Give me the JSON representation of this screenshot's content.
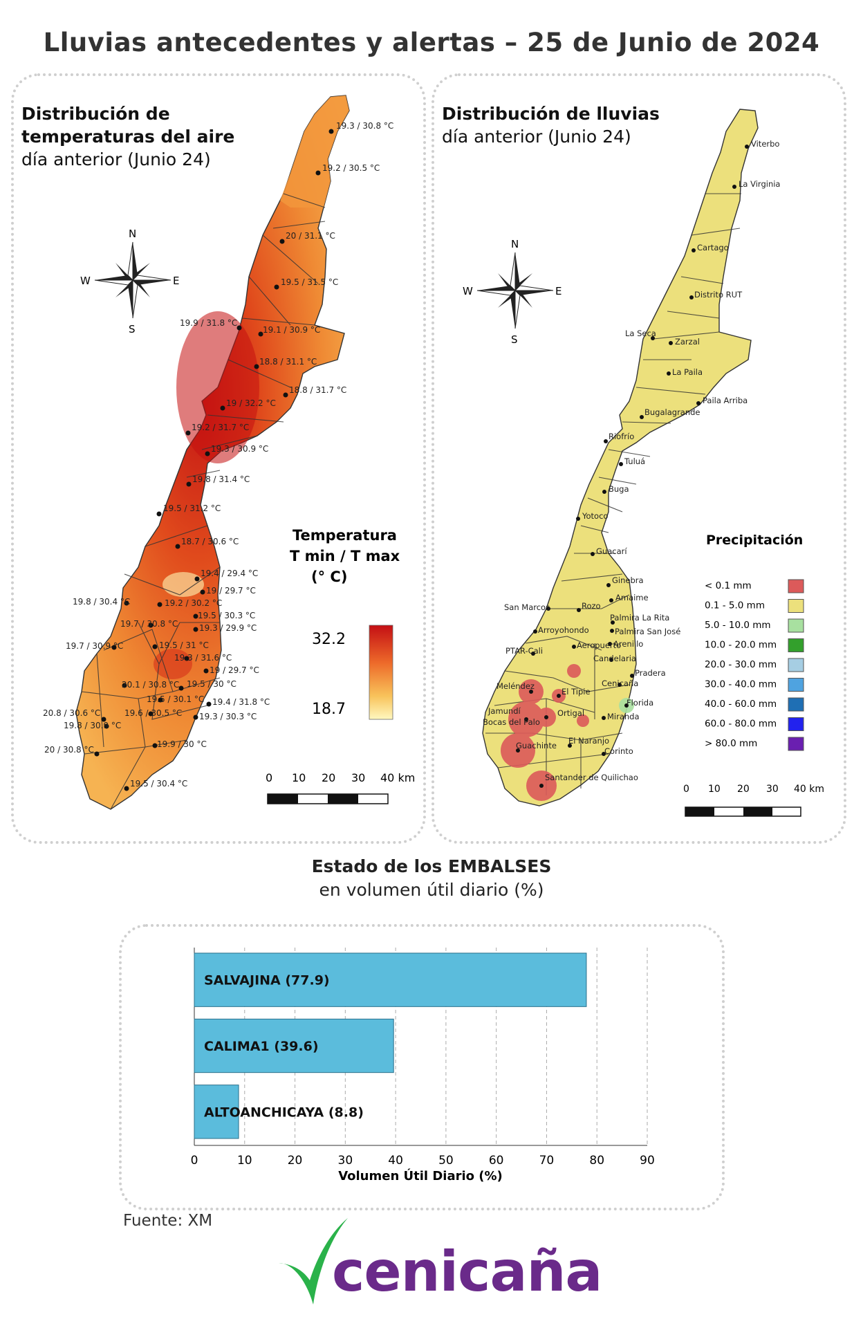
{
  "title": "Lluvias antecedentes y alertas – 25 de Junio de 2024",
  "temp_panel": {
    "title_line1": "Distribución de",
    "title_line2": "temperaturas del aire",
    "subtitle": "día anterior (Junio 24)",
    "legend_title_1": "Temperatura",
    "legend_title_2": "T min / T max",
    "legend_title_3": "(° C)",
    "legend_max": "32.2",
    "legend_min": "18.7",
    "scale_labels": [
      "0",
      "10",
      "20",
      "30",
      "40 km"
    ],
    "compass": {
      "n": "N",
      "s": "S",
      "e": "E",
      "w": "W"
    },
    "stations": [
      "19.3 / 30.8 °C",
      "19.2 / 30.5 °C",
      "20 / 31.1 °C",
      "19.5 / 31.5 °C",
      "19.9 / 31.8 °C",
      "19.1 / 30.9 °C",
      "18.8 / 31.1 °C",
      "18.8 / 31.7 °C",
      "19 / 32.2 °C",
      "19.2 / 31.7 °C",
      "19.3 / 30.9 °C",
      "19.8 / 31.4 °C",
      "19.5 / 31.2 °C",
      "18.7 / 30.6 °C",
      "19.4 / 29.4 °C",
      "19 / 29.7 °C",
      "19.8 / 30.4 °C",
      "19.2 / 30.2 °C",
      "19.5 / 30.3 °C",
      "19.7 / 30.8 °C",
      "19.3 / 29.9 °C",
      "19.7 / 30.9 °C",
      "19.5 / 31 °C",
      "19.3 / 31.6 °C",
      "19 / 29.7 °C",
      "20.1 / 30.8 °C",
      "19.5 / 30 °C",
      "19.5 / 30.1 °C",
      "19.4 / 31.8 °C",
      "20.8 / 30.6 °C",
      "19.6 / 30.5 °C",
      "19.3 / 30.3 °C",
      "19.8 / 30.9 °C",
      "20 / 30.8 °C",
      "19.9 / 30 °C",
      "19.5 / 30.4 °C"
    ]
  },
  "rain_panel": {
    "title_line1": "Distribución de lluvias",
    "subtitle": "día anterior (Junio 24)",
    "legend_title": "Precipitación",
    "legend": [
      {
        "label": "< 0.1 mm",
        "color": "#dc5a5a"
      },
      {
        "label": "0.1 - 5.0 mm",
        "color": "#ece07c"
      },
      {
        "label": "5.0 - 10.0 mm",
        "color": "#a8e0a0"
      },
      {
        "label": "10.0 - 20.0 mm",
        "color": "#33a02c"
      },
      {
        "label": "20.0 - 30.0 mm",
        "color": "#a6cee3"
      },
      {
        "label": "30.0 - 40.0 mm",
        "color": "#4fa3e0"
      },
      {
        "label": "40.0 - 60.0 mm",
        "color": "#1f6fb4"
      },
      {
        "label": "60.0 - 80.0 mm",
        "color": "#2222ee"
      },
      {
        "label": "> 80.0 mm",
        "color": "#6a1fb0"
      }
    ],
    "scale_labels": [
      "0",
      "10",
      "20",
      "30",
      "40 km"
    ],
    "compass": {
      "n": "N",
      "s": "S",
      "e": "E",
      "w": "W"
    },
    "places": [
      "Viterbo",
      "La Virginia",
      "Cartago",
      "Distrito RUT",
      "La Seca",
      "Zarzal",
      "La Paila",
      "Paila Arriba",
      "Bugalagrande",
      "Riofrío",
      "Tuluá",
      "Buga",
      "Yotoco",
      "Guacarí",
      "Ginebra",
      "Amaime",
      "San Marcos",
      "Rozo",
      "Palmira La Rita",
      "Arroyohondo",
      "Palmira San José",
      "Aeropuerto",
      "Arenillo",
      "PTAR-Cali",
      "Candelaria",
      "Pradera",
      "Meléndez",
      "El Tipie",
      "Cenicaña",
      "Jamundí",
      "Bocas del Palo",
      "Ortigal",
      "Florida",
      "Miranda",
      "Guachinte",
      "El Naranjo",
      "Corinto",
      "Santander de Quilichao"
    ]
  },
  "reservoirs": {
    "title": "Estado de los EMBALSES",
    "subtitle": "en volumen útil diario (%)",
    "source": "Fuente: XM"
  },
  "chart_data": {
    "type": "bar",
    "orientation": "horizontal",
    "categories": [
      "SALVAJINA",
      "CALIMA1",
      "ALTOANCHICAYA"
    ],
    "bar_labels": [
      "SALVAJINA (77.9)",
      "CALIMA1 (39.6)",
      "ALTOANCHICAYA (8.8)"
    ],
    "values": [
      77.9,
      39.6,
      8.8
    ],
    "xlabel": "Volumen Útil Diario (%)",
    "ylabel": "",
    "xlim": [
      0,
      90
    ],
    "xticks": [
      "0",
      "10",
      "20",
      "30",
      "40",
      "50",
      "60",
      "70",
      "80",
      "90"
    ],
    "bar_color": "#5bbcdc",
    "grid": true
  },
  "logo": {
    "text": "cenicaña",
    "color": "#6a2a8a",
    "mark_color": "#2ab24a"
  }
}
